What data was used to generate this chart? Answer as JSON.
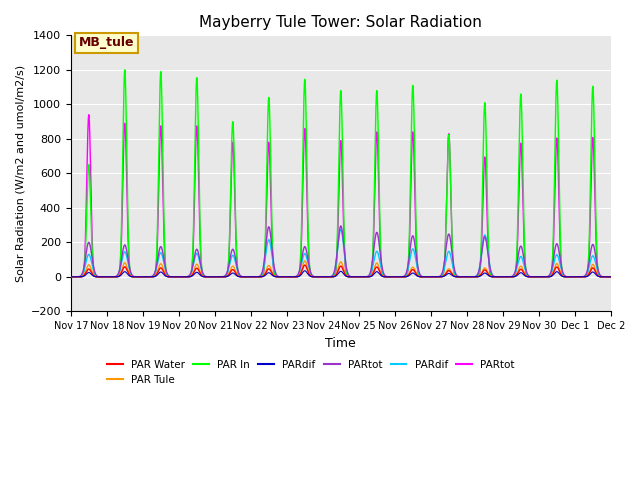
{
  "title": "Mayberry Tule Tower: Solar Radiation",
  "ylabel": "Solar Radiation (W/m2 and umol/m2/s)",
  "xlabel": "Time",
  "ylim": [
    -200,
    1400
  ],
  "background_color": "#e8e8e8",
  "grid_color": "#ffffff",
  "legend_label": "MB_tule",
  "legend_bg": "#ffffcc",
  "legend_border": "#cc9900",
  "legend_text_color": "#660000",
  "x_tick_labels": [
    "Nov 17",
    "Nov 18",
    "Nov 19",
    "Nov 20",
    "Nov 21",
    "Nov 22",
    "Nov 23",
    "Nov 24",
    "Nov 25",
    "Nov 26",
    "Nov 27",
    "Nov 28",
    "Nov 29",
    "Nov 30",
    "Dec 1",
    "Dec 2"
  ],
  "day_peaks": [
    {
      "green": 650,
      "magenta": 940,
      "orange": 70,
      "red": 45,
      "cyan": 130,
      "purple": 200,
      "blue": 25
    },
    {
      "green": 1200,
      "magenta": 890,
      "orange": 82,
      "red": 58,
      "cyan": 145,
      "purple": 185,
      "blue": 30
    },
    {
      "green": 1190,
      "magenta": 875,
      "orange": 76,
      "red": 52,
      "cyan": 140,
      "purple": 175,
      "blue": 28
    },
    {
      "green": 1155,
      "magenta": 875,
      "orange": 73,
      "red": 50,
      "cyan": 135,
      "purple": 160,
      "blue": 26
    },
    {
      "green": 900,
      "magenta": 780,
      "orange": 62,
      "red": 42,
      "cyan": 125,
      "purple": 160,
      "blue": 22
    },
    {
      "green": 1040,
      "magenta": 780,
      "orange": 66,
      "red": 46,
      "cyan": 215,
      "purple": 290,
      "blue": 24
    },
    {
      "green": 1145,
      "magenta": 860,
      "orange": 92,
      "red": 68,
      "cyan": 135,
      "purple": 175,
      "blue": 35
    },
    {
      "green": 1080,
      "magenta": 790,
      "orange": 87,
      "red": 62,
      "cyan": 275,
      "purple": 295,
      "blue": 32
    },
    {
      "green": 1080,
      "magenta": 840,
      "orange": 80,
      "red": 57,
      "cyan": 148,
      "purple": 258,
      "blue": 30
    },
    {
      "green": 1110,
      "magenta": 840,
      "orange": 56,
      "red": 42,
      "cyan": 162,
      "purple": 238,
      "blue": 22
    },
    {
      "green": 825,
      "magenta": 830,
      "orange": 46,
      "red": 36,
      "cyan": 148,
      "purple": 248,
      "blue": 20
    },
    {
      "green": 1010,
      "magenta": 695,
      "orange": 52,
      "red": 40,
      "cyan": 243,
      "purple": 232,
      "blue": 22
    },
    {
      "green": 1060,
      "magenta": 775,
      "orange": 62,
      "red": 44,
      "cyan": 118,
      "purple": 178,
      "blue": 24
    },
    {
      "green": 1140,
      "magenta": 805,
      "orange": 77,
      "red": 57,
      "cyan": 128,
      "purple": 192,
      "blue": 30
    },
    {
      "green": 1105,
      "magenta": 808,
      "orange": 72,
      "red": 52,
      "cyan": 122,
      "purple": 188,
      "blue": 28
    }
  ]
}
